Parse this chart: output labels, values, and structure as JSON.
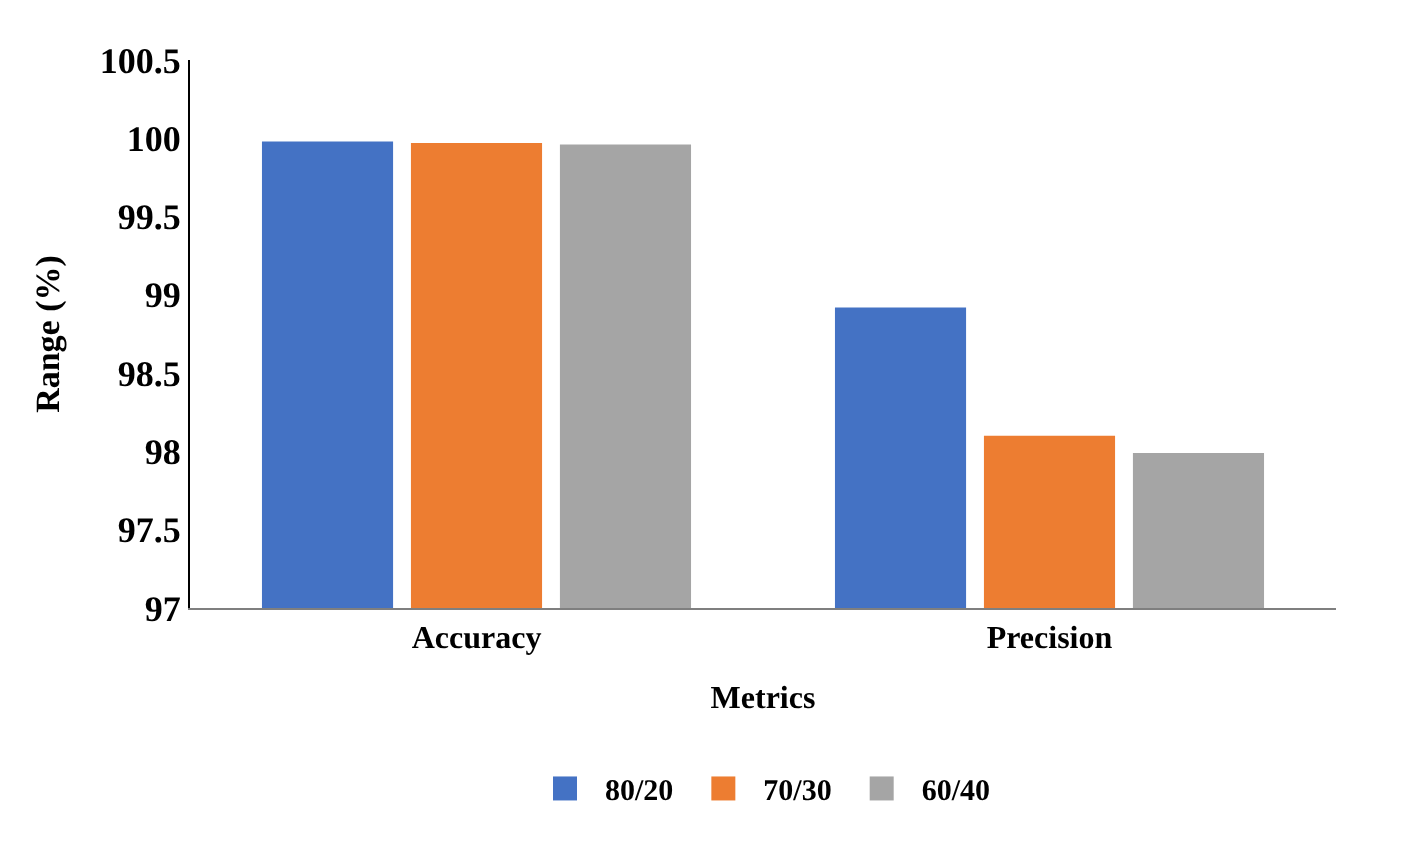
{
  "chart_data": {
    "type": "bar",
    "xlabel": "Metrics",
    "ylabel": "Range (%)",
    "categories": [
      "Accuracy",
      "Precision"
    ],
    "series": [
      {
        "name": "80/20",
        "color": "#4472c4",
        "values": [
          99.98,
          98.92
        ]
      },
      {
        "name": "70/30",
        "color": "#ed7d31",
        "values": [
          99.97,
          98.1
        ]
      },
      {
        "name": "60/40",
        "color": "#a5a5a5",
        "values": [
          99.96,
          97.99
        ]
      }
    ],
    "ylim": [
      97,
      100.5
    ],
    "yticks": [
      97,
      97.5,
      98,
      98.5,
      99,
      99.5,
      100,
      100.5
    ],
    "legend": "bottom"
  }
}
